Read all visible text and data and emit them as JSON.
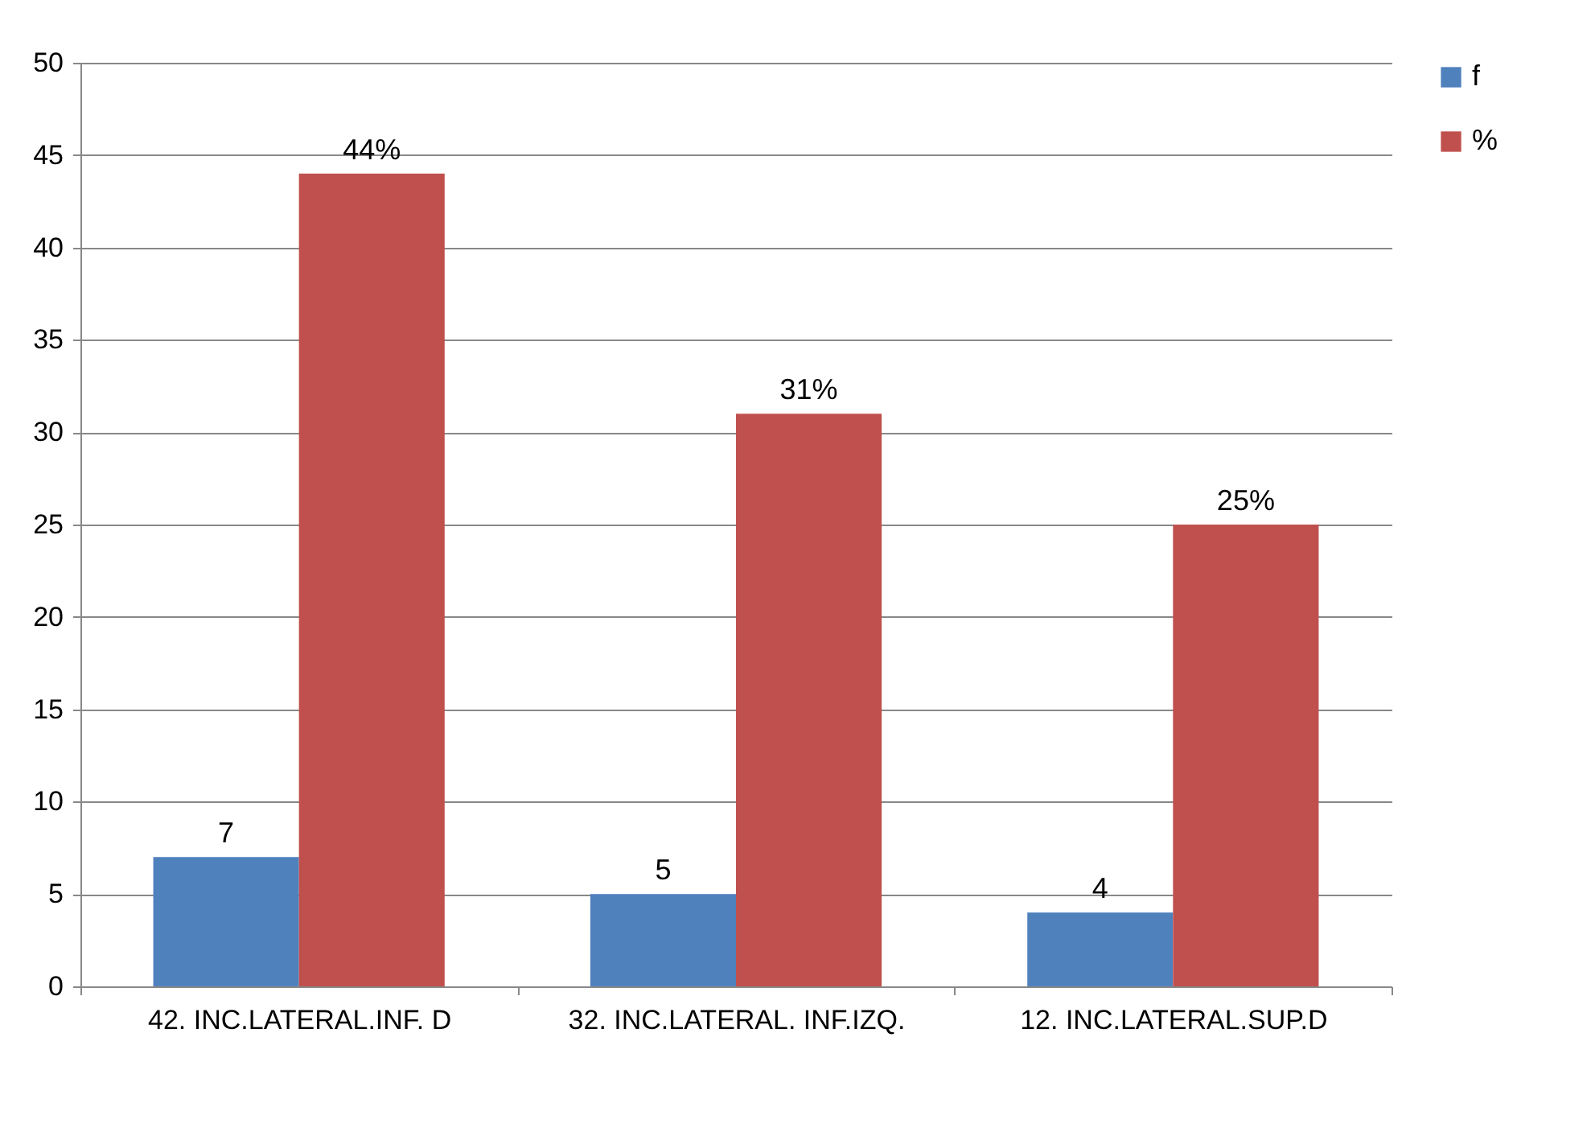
{
  "chart_data": {
    "type": "bar",
    "categories": [
      "42. INC.LATERAL.INF. D",
      "32. INC.LATERAL. INF.IZQ.",
      "12. INC.LATERAL.SUP.D"
    ],
    "series": [
      {
        "name": "f",
        "color": "#4f81bd",
        "values": [
          7,
          5,
          4
        ],
        "value_labels": [
          "7",
          "5",
          "4"
        ]
      },
      {
        "name": "%",
        "color": "#c0504d",
        "values": [
          44,
          31,
          25
        ],
        "value_labels": [
          "44%",
          "31%",
          "25%"
        ]
      }
    ],
    "ylim": [
      0,
      50
    ],
    "yticks": [
      0,
      5,
      10,
      15,
      20,
      25,
      30,
      35,
      40,
      45,
      50
    ],
    "grid": "y",
    "legend": "right"
  }
}
